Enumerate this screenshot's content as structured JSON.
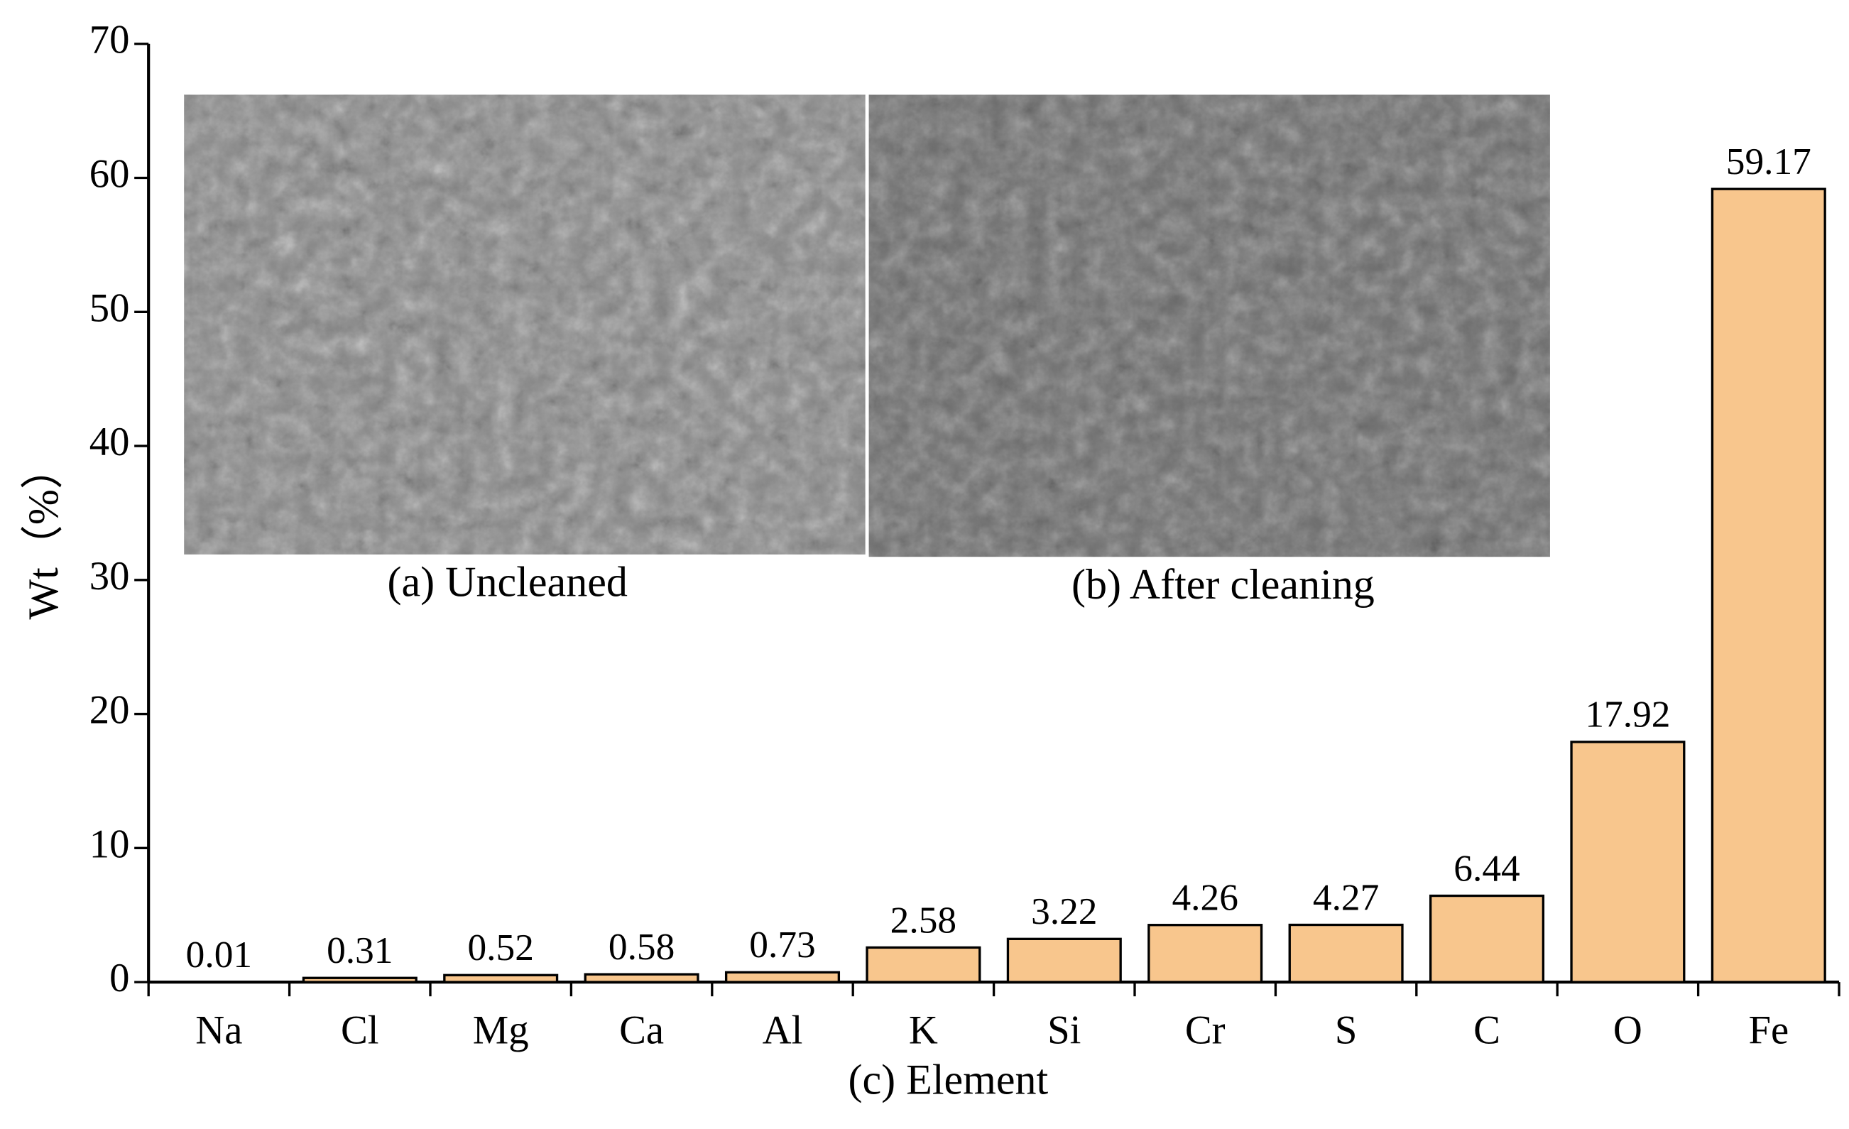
{
  "chart_data": {
    "type": "bar",
    "xlabel": "(c) Element",
    "ylabel": "Wt（%）",
    "categories": [
      "Na",
      "Cl",
      "Mg",
      "Ca",
      "Al",
      "K",
      "Si",
      "Cr",
      "S",
      "C",
      "O",
      "Fe"
    ],
    "values": [
      0.01,
      0.31,
      0.52,
      0.58,
      0.73,
      2.58,
      3.22,
      4.26,
      4.27,
      6.44,
      17.92,
      59.17
    ],
    "color": "#f8c68d",
    "ylim": [
      0,
      70
    ],
    "yticks": [
      0,
      10,
      20,
      30,
      40,
      50,
      60,
      70
    ],
    "insets": [
      "(a) Uncleaned",
      "(b) After cleaning"
    ]
  }
}
